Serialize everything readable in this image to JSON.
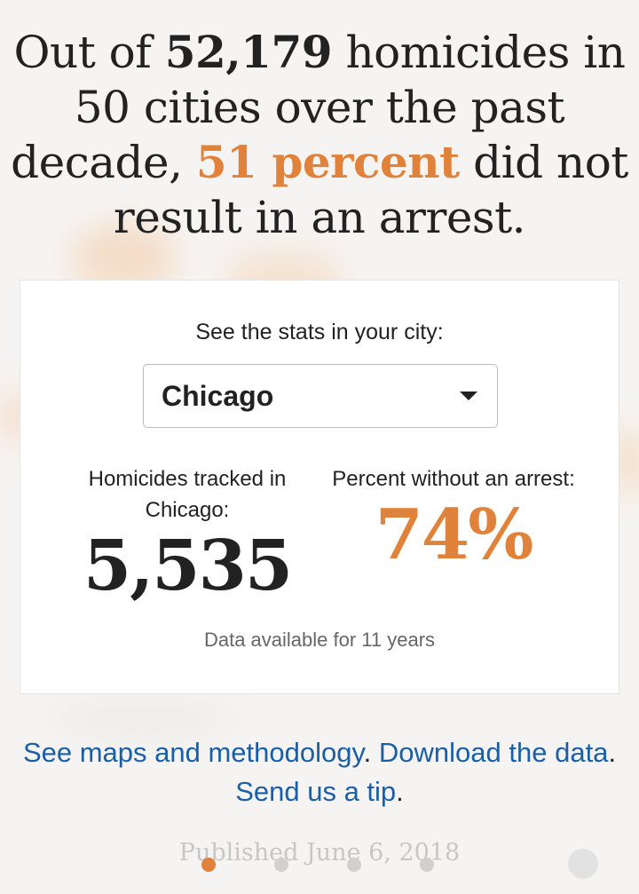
{
  "headline": {
    "prefix": "Out of ",
    "total": "52,179",
    "middle": " homicides in 50 cities over the past decade, ",
    "percent": "51 percent",
    "suffix": " did not result in an arrest."
  },
  "card": {
    "prompt": "See the stats in your city:",
    "selected_city": "Chicago",
    "stats": {
      "tracked_label": "Homicides tracked in Chicago:",
      "tracked_value": "5,535",
      "no_arrest_label": "Percent without an arrest:",
      "no_arrest_value": "74%"
    },
    "availability": "Data available for 11 years"
  },
  "links": {
    "maps": "See maps and methodology",
    "download": "Download the data",
    "tip": "Send us a tip"
  },
  "published": "Published June 6, 2018",
  "pagination": {
    "total": 4,
    "active_index": 0
  },
  "colors": {
    "accent": "#e0823a",
    "link": "#1a5fa6",
    "text": "#222222"
  }
}
